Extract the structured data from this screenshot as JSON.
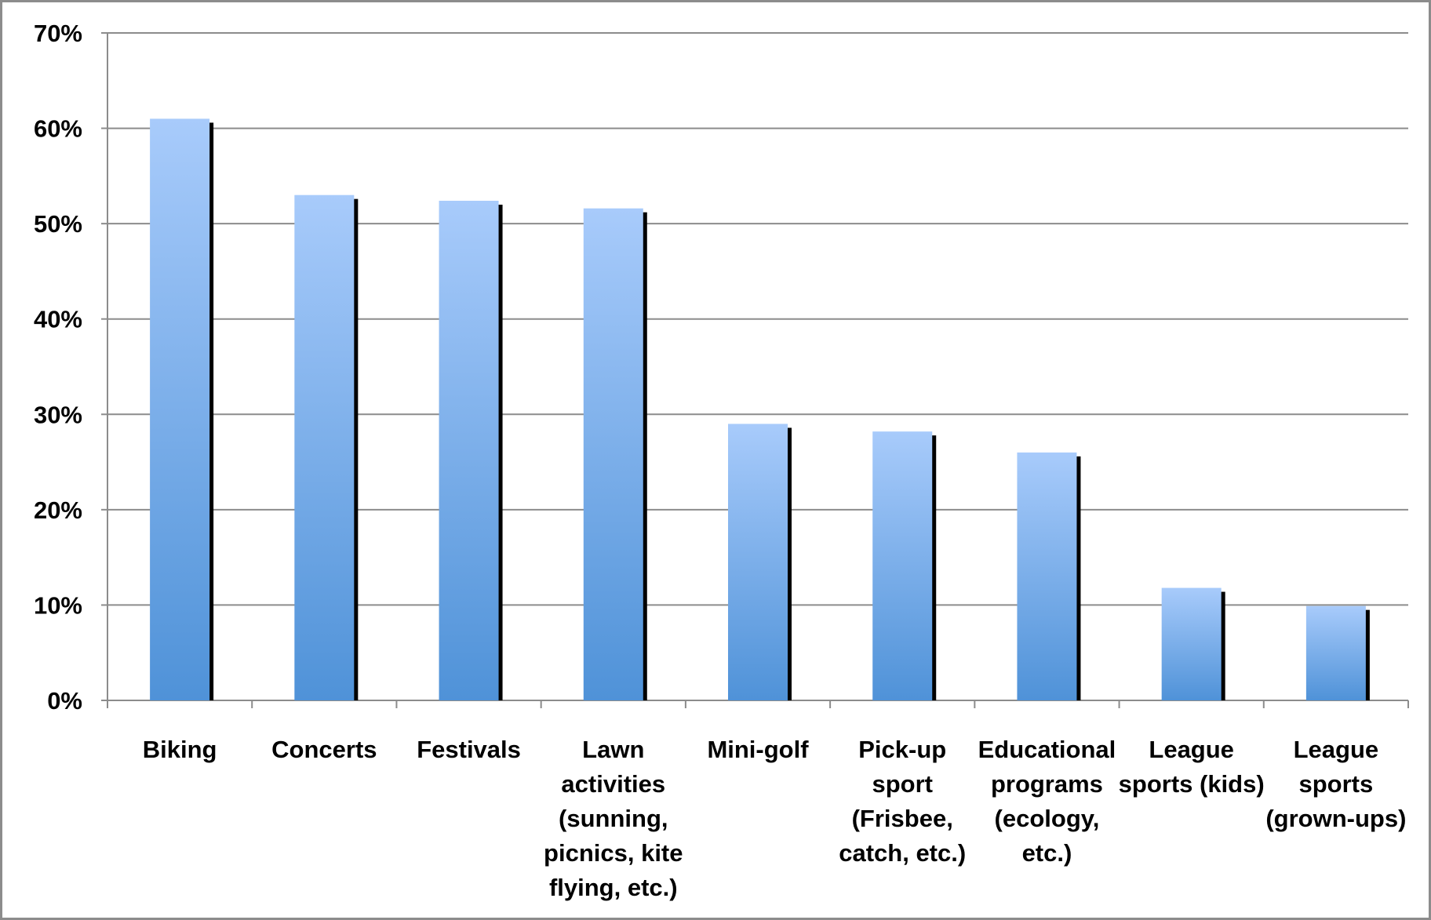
{
  "chart_data": {
    "type": "bar",
    "categories": [
      [
        "Biking"
      ],
      [
        "Concerts"
      ],
      [
        "Festivals"
      ],
      [
        "Lawn",
        "activities",
        "(sunning,",
        "picnics, kite",
        "flying, etc.)"
      ],
      [
        "Mini-golf"
      ],
      [
        "Pick-up",
        "sport",
        "(Frisbee,",
        "catch, etc.)"
      ],
      [
        "Educational",
        "programs",
        "(ecology,",
        "etc.)"
      ],
      [
        "League",
        "sports (kids)"
      ],
      [
        "League",
        "sports",
        "(grown-ups)"
      ]
    ],
    "values": [
      61,
      53,
      52.4,
      51.6,
      29,
      28.2,
      26,
      11.8,
      9.9
    ],
    "ylim": [
      0,
      70
    ],
    "yticks": [
      0,
      10,
      20,
      30,
      40,
      50,
      60,
      70
    ],
    "ytick_labels": [
      "0%",
      "10%",
      "20%",
      "30%",
      "40%",
      "50%",
      "60%",
      "70%"
    ],
    "grid": true,
    "legend": "none",
    "colors": {
      "bar_top": "#a8cbfb",
      "bar_bottom": "#4f92d8",
      "bar_shadow": "#000000",
      "grid": "#8c8c8c",
      "axis": "#8c8c8c"
    }
  }
}
